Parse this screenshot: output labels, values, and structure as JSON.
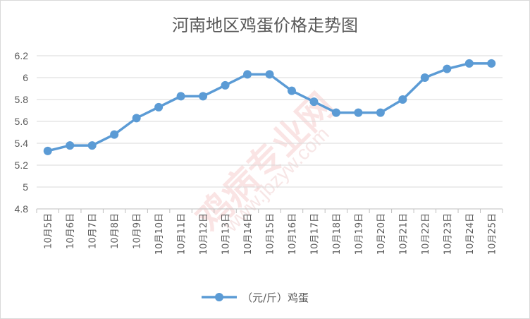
{
  "chart_data": {
    "type": "line",
    "title": "河南地区鸡蛋价格走势图",
    "categories": [
      "10月5日",
      "10月6日",
      "10月7日",
      "10月8日",
      "10月9日",
      "10月10日",
      "10月11日",
      "10月12日",
      "10月13日",
      "10月14日",
      "10月15日",
      "10月16日",
      "10月17日",
      "10月18日",
      "10月19日",
      "10月20日",
      "10月21日",
      "10月22日",
      "10月23日",
      "10月24日",
      "10月25日"
    ],
    "series": [
      {
        "name": "（元/斤）鸡蛋",
        "values": [
          5.33,
          5.38,
          5.38,
          5.48,
          5.63,
          5.73,
          5.83,
          5.83,
          5.93,
          6.03,
          6.03,
          5.88,
          5.78,
          5.68,
          5.68,
          5.68,
          5.8,
          6.0,
          6.08,
          6.13,
          6.13
        ],
        "color": "#5b9bd5"
      }
    ],
    "ylim": [
      4.8,
      6.2
    ],
    "yticks": [
      4.8,
      5,
      5.2,
      5.4,
      5.6,
      5.8,
      6,
      6.2
    ],
    "ytick_labels": [
      "4.8",
      "5",
      "5.2",
      "5.4",
      "5.6",
      "5.8",
      "6",
      "6.2"
    ],
    "grid": true,
    "legend": "bottom"
  },
  "watermark": {
    "text": "鸡病专业网",
    "url": "www.jbzyw.com"
  }
}
